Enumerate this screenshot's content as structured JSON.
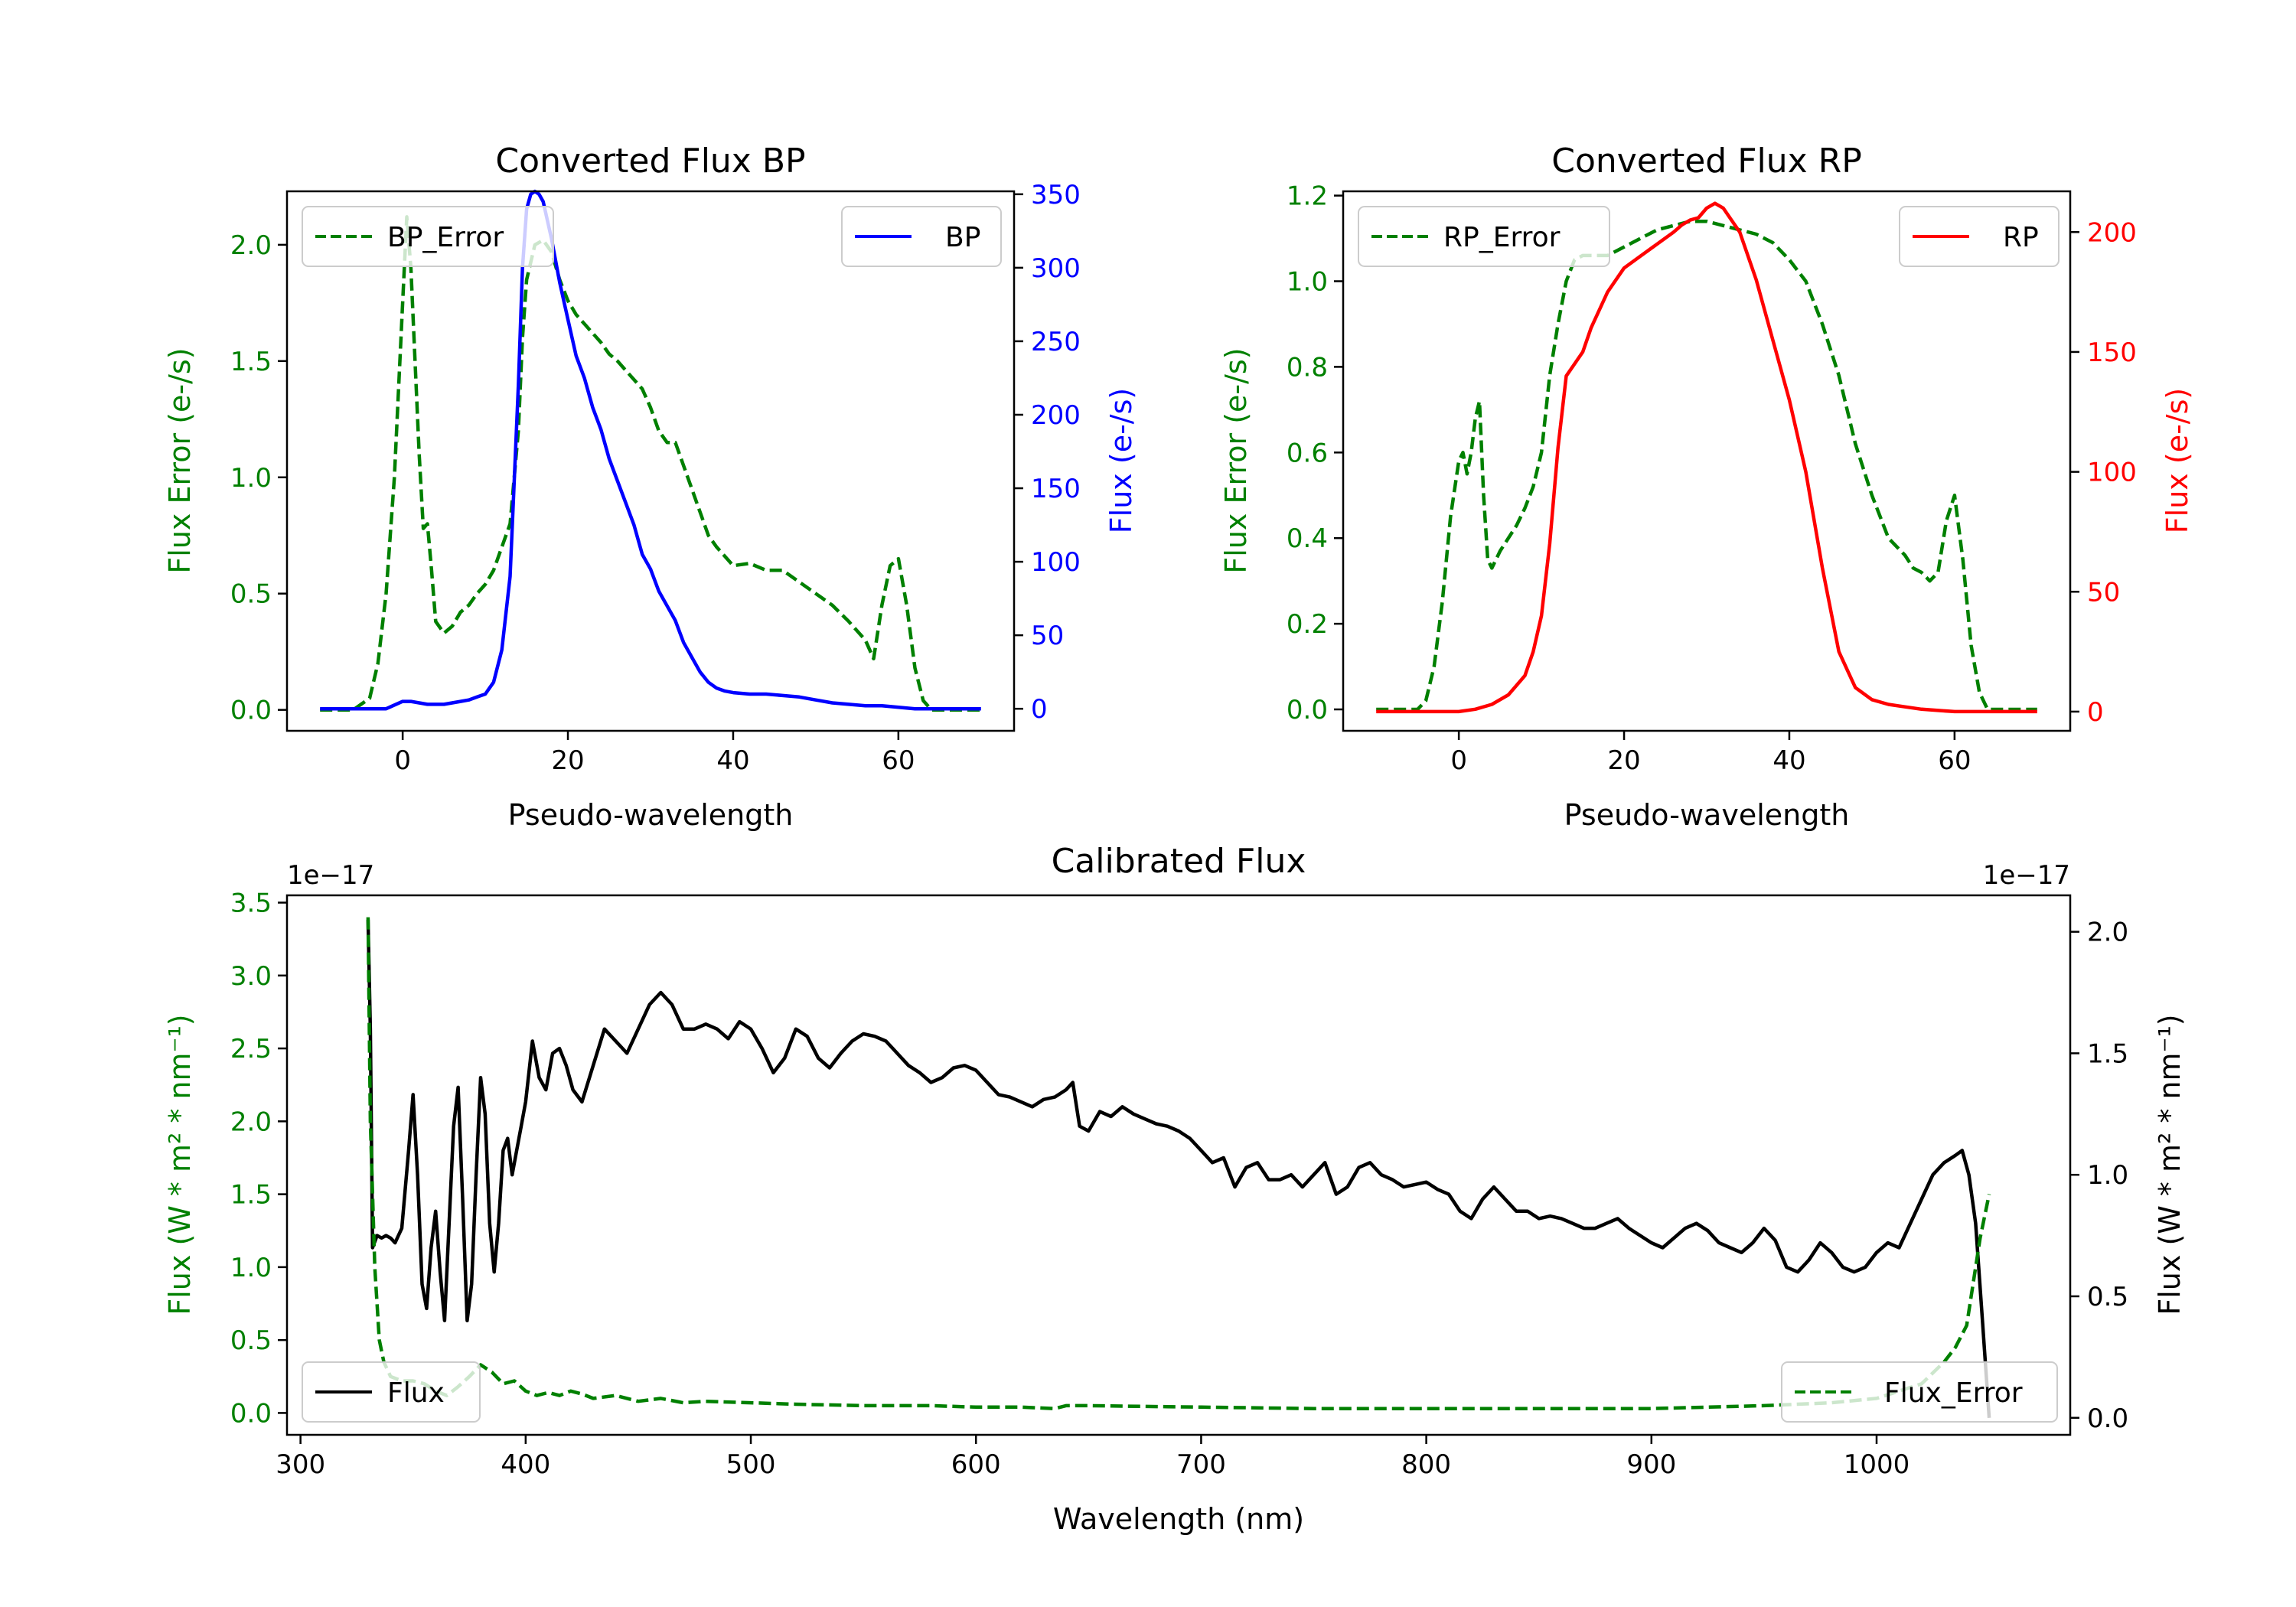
{
  "colors": {
    "green": "#008000",
    "blue": "#0000ff",
    "red": "#ff0000",
    "black": "#000000"
  },
  "chart_data": [
    {
      "id": "bp",
      "type": "line",
      "title": "Converted Flux BP",
      "xlabel": "Pseudo-wavelength",
      "ylabel_left": "Flux Error (e-/s)",
      "ylabel_right": "Flux (e-/s)",
      "xlim": [
        -14,
        74
      ],
      "ylim_left": [
        -0.09,
        2.23
      ],
      "ylim_right": [
        -15,
        352
      ],
      "xticks": [
        0,
        20,
        40,
        60
      ],
      "yticks_left": [
        "0.0",
        "0.5",
        "1.0",
        "1.5",
        "2.0"
      ],
      "yticks_right": [
        "0",
        "50",
        "100",
        "150",
        "200",
        "250",
        "300",
        "350"
      ],
      "legend_left": "BP_Error",
      "legend_right": "BP",
      "series": [
        {
          "name": "BP_Error",
          "axis": "left",
          "style": "dashed",
          "color": "green",
          "x": [
            -10,
            -6,
            -4,
            -3,
            -2,
            -1,
            0,
            0.5,
            1,
            2,
            2.5,
            3,
            3.5,
            4,
            5,
            6,
            7,
            8,
            9,
            10,
            11,
            12,
            13,
            14,
            14.5,
            15,
            16,
            17,
            18,
            19,
            20,
            21,
            22,
            23,
            24,
            25,
            26,
            27,
            28,
            29,
            30,
            31,
            32,
            33,
            34,
            35,
            36,
            37,
            38,
            40,
            42,
            44,
            46,
            48,
            50,
            52,
            54,
            56,
            57,
            58,
            59,
            60,
            61,
            62,
            63,
            64,
            66,
            68,
            70
          ],
          "y": [
            0.0,
            0.0,
            0.05,
            0.2,
            0.5,
            1.0,
            1.75,
            2.12,
            1.9,
            1.1,
            0.78,
            0.8,
            0.6,
            0.38,
            0.33,
            0.36,
            0.42,
            0.45,
            0.5,
            0.54,
            0.6,
            0.7,
            0.8,
            1.2,
            1.6,
            1.85,
            2.0,
            2.02,
            1.97,
            1.85,
            1.76,
            1.7,
            1.66,
            1.62,
            1.58,
            1.53,
            1.5,
            1.46,
            1.42,
            1.38,
            1.3,
            1.2,
            1.15,
            1.15,
            1.05,
            0.95,
            0.85,
            0.75,
            0.7,
            0.62,
            0.63,
            0.6,
            0.6,
            0.55,
            0.5,
            0.45,
            0.38,
            0.3,
            0.22,
            0.45,
            0.62,
            0.65,
            0.45,
            0.18,
            0.04,
            0.0,
            0.0,
            0.0,
            0.0
          ]
        },
        {
          "name": "BP",
          "axis": "right",
          "style": "solid",
          "color": "blue",
          "x": [
            -10,
            -5,
            -2,
            0,
            1,
            2,
            3,
            4,
            5,
            6,
            7,
            8,
            9,
            10,
            11,
            12,
            13,
            14,
            14.5,
            15,
            15.5,
            16,
            16.5,
            17,
            18,
            19,
            20,
            21,
            22,
            23,
            24,
            25,
            26,
            27,
            28,
            29,
            30,
            31,
            32,
            33,
            34,
            35,
            36,
            37,
            38,
            39,
            40,
            42,
            44,
            46,
            48,
            50,
            52,
            54,
            56,
            58,
            60,
            62,
            64,
            66,
            68,
            70
          ],
          "y": [
            0,
            0,
            0,
            5,
            5,
            4,
            3,
            3,
            3,
            4,
            5,
            6,
            8,
            10,
            18,
            40,
            90,
            220,
            300,
            340,
            350,
            352,
            350,
            345,
            320,
            290,
            265,
            240,
            225,
            205,
            190,
            170,
            155,
            140,
            125,
            105,
            95,
            80,
            70,
            60,
            45,
            35,
            25,
            18,
            14,
            12,
            11,
            10,
            10,
            9,
            8,
            6,
            4,
            3,
            2,
            2,
            1,
            0,
            0,
            0,
            0,
            0
          ]
        }
      ]
    },
    {
      "id": "rp",
      "type": "line",
      "title": "Converted Flux RP",
      "xlabel": "Pseudo-wavelength",
      "ylabel_left": "Flux Error (e-/s)",
      "ylabel_right": "Flux (e-/s)",
      "xlim": [
        -14,
        74
      ],
      "ylim_left": [
        -0.05,
        1.21
      ],
      "ylim_right": [
        -8,
        217
      ],
      "xticks": [
        0,
        20,
        40,
        60
      ],
      "yticks_left": [
        "0.0",
        "0.2",
        "0.4",
        "0.6",
        "0.8",
        "1.0",
        "1.2"
      ],
      "yticks_right": [
        "0",
        "50",
        "100",
        "150",
        "200"
      ],
      "legend_left": "RP_Error",
      "legend_right": "RP",
      "series": [
        {
          "name": "RP_Error",
          "axis": "left",
          "style": "dashed",
          "color": "green",
          "x": [
            -10,
            -5,
            -4,
            -3,
            -2,
            -1,
            0,
            0.5,
            1,
            1.5,
            2,
            2.5,
            3,
            3.5,
            4,
            5,
            6,
            7,
            8,
            9,
            10,
            11,
            12,
            13,
            14,
            15,
            16,
            17,
            18,
            20,
            22,
            24,
            26,
            28,
            30,
            32,
            34,
            36,
            38,
            40,
            42,
            44,
            46,
            48,
            50,
            52,
            54,
            55,
            56,
            57,
            58,
            59,
            60,
            61,
            62,
            63,
            64,
            66,
            68,
            70
          ],
          "y": [
            0.0,
            0.0,
            0.02,
            0.1,
            0.25,
            0.45,
            0.58,
            0.6,
            0.55,
            0.6,
            0.68,
            0.72,
            0.5,
            0.35,
            0.33,
            0.37,
            0.4,
            0.43,
            0.47,
            0.52,
            0.6,
            0.78,
            0.9,
            1.0,
            1.05,
            1.06,
            1.06,
            1.06,
            1.06,
            1.08,
            1.1,
            1.12,
            1.13,
            1.14,
            1.14,
            1.13,
            1.12,
            1.11,
            1.09,
            1.05,
            1.0,
            0.9,
            0.78,
            0.62,
            0.5,
            0.4,
            0.36,
            0.33,
            0.32,
            0.3,
            0.32,
            0.44,
            0.5,
            0.35,
            0.15,
            0.04,
            0.0,
            0.0,
            0.0,
            0.0
          ]
        },
        {
          "name": "RP",
          "axis": "right",
          "style": "solid",
          "color": "red",
          "x": [
            -10,
            -5,
            0,
            2,
            4,
            6,
            8,
            9,
            10,
            11,
            12,
            13,
            14,
            15,
            16,
            18,
            20,
            22,
            24,
            26,
            27,
            28,
            29,
            30,
            31,
            32,
            33,
            34,
            35,
            36,
            38,
            40,
            42,
            44,
            46,
            48,
            50,
            52,
            54,
            56,
            58,
            60,
            62,
            64,
            66,
            68,
            70
          ],
          "y": [
            0,
            0,
            0,
            1,
            3,
            7,
            15,
            25,
            40,
            70,
            110,
            140,
            145,
            150,
            160,
            175,
            185,
            190,
            195,
            200,
            203,
            205,
            206,
            210,
            212,
            210,
            205,
            200,
            190,
            180,
            155,
            130,
            100,
            60,
            25,
            10,
            5,
            3,
            2,
            1,
            0.5,
            0,
            0,
            0,
            0,
            0,
            0
          ]
        }
      ]
    },
    {
      "id": "cal",
      "type": "line",
      "title": "Calibrated Flux",
      "xlabel": "Wavelength (nm)",
      "ylabel_left": "Flux (W * m² * nm⁻¹)",
      "ylabel_right": "Flux (W * m² * nm⁻¹)",
      "xlim": [
        294,
        1086
      ],
      "ylim_left": [
        -0.15,
        3.55
      ],
      "ylim_right": [
        -0.07,
        2.15
      ],
      "offset_left": "1e−17",
      "offset_right": "1e−17",
      "xticks": [
        300,
        400,
        500,
        600,
        700,
        800,
        900,
        1000
      ],
      "yticks_left": [
        "0.0",
        "0.5",
        "1.0",
        "1.5",
        "2.0",
        "2.5",
        "3.0",
        "3.5"
      ],
      "yticks_right": [
        "0.0",
        "0.5",
        "1.0",
        "1.5",
        "2.0"
      ],
      "legend_left": "Flux",
      "legend_right": "Flux_Error",
      "series": [
        {
          "name": "Flux",
          "axis": "right",
          "style": "solid",
          "color": "black",
          "x": [
            330,
            331,
            332,
            334,
            336,
            338,
            340,
            342,
            345,
            348,
            350,
            352,
            354,
            356,
            358,
            360,
            362,
            364,
            366,
            368,
            370,
            372,
            374,
            376,
            378,
            380,
            382,
            384,
            386,
            388,
            390,
            392,
            394,
            396,
            398,
            400,
            403,
            406,
            409,
            412,
            415,
            418,
            421,
            425,
            430,
            435,
            440,
            445,
            450,
            455,
            460,
            465,
            470,
            475,
            480,
            485,
            490,
            495,
            500,
            505,
            510,
            515,
            520,
            525,
            530,
            535,
            540,
            545,
            550,
            555,
            560,
            565,
            570,
            575,
            580,
            585,
            590,
            595,
            600,
            605,
            610,
            615,
            620,
            625,
            630,
            635,
            640,
            643,
            646,
            650,
            655,
            660,
            665,
            670,
            675,
            680,
            685,
            690,
            695,
            700,
            705,
            710,
            715,
            720,
            725,
            730,
            735,
            740,
            745,
            750,
            755,
            760,
            765,
            770,
            775,
            780,
            785,
            790,
            795,
            800,
            805,
            810,
            815,
            820,
            825,
            830,
            835,
            840,
            845,
            850,
            855,
            860,
            865,
            870,
            875,
            880,
            885,
            890,
            895,
            900,
            905,
            910,
            915,
            920,
            925,
            930,
            935,
            940,
            945,
            950,
            955,
            960,
            965,
            970,
            975,
            980,
            985,
            990,
            995,
            1000,
            1005,
            1010,
            1015,
            1020,
            1025,
            1030,
            1035,
            1038,
            1041,
            1044,
            1047,
            1050
          ],
          "y": [
            2.05,
            1.6,
            0.7,
            0.75,
            0.74,
            0.75,
            0.74,
            0.72,
            0.78,
            1.1,
            1.33,
            1.0,
            0.55,
            0.45,
            0.7,
            0.85,
            0.6,
            0.4,
            0.8,
            1.2,
            1.36,
            0.9,
            0.4,
            0.55,
            1.0,
            1.4,
            1.25,
            0.8,
            0.6,
            0.8,
            1.1,
            1.15,
            1.0,
            1.1,
            1.2,
            1.3,
            1.55,
            1.4,
            1.35,
            1.5,
            1.52,
            1.45,
            1.35,
            1.3,
            1.45,
            1.6,
            1.55,
            1.5,
            1.6,
            1.7,
            1.75,
            1.7,
            1.6,
            1.6,
            1.62,
            1.6,
            1.56,
            1.63,
            1.6,
            1.52,
            1.42,
            1.48,
            1.6,
            1.57,
            1.48,
            1.44,
            1.5,
            1.55,
            1.58,
            1.57,
            1.55,
            1.5,
            1.45,
            1.42,
            1.38,
            1.4,
            1.44,
            1.45,
            1.43,
            1.38,
            1.33,
            1.32,
            1.3,
            1.28,
            1.31,
            1.32,
            1.35,
            1.38,
            1.2,
            1.18,
            1.26,
            1.24,
            1.28,
            1.25,
            1.23,
            1.21,
            1.2,
            1.18,
            1.15,
            1.1,
            1.05,
            1.07,
            0.95,
            1.03,
            1.05,
            0.98,
            0.98,
            1.0,
            0.95,
            1.0,
            1.05,
            0.92,
            0.95,
            1.03,
            1.05,
            1.0,
            0.98,
            0.95,
            0.96,
            0.97,
            0.94,
            0.92,
            0.85,
            0.82,
            0.9,
            0.95,
            0.9,
            0.85,
            0.85,
            0.82,
            0.83,
            0.82,
            0.8,
            0.78,
            0.78,
            0.8,
            0.82,
            0.78,
            0.75,
            0.72,
            0.7,
            0.74,
            0.78,
            0.8,
            0.77,
            0.72,
            0.7,
            0.68,
            0.72,
            0.78,
            0.73,
            0.62,
            0.6,
            0.65,
            0.72,
            0.68,
            0.62,
            0.6,
            0.62,
            0.68,
            0.72,
            0.7,
            0.8,
            0.9,
            1.0,
            1.05,
            1.08,
            1.1,
            1.0,
            0.8,
            0.4,
            0.0
          ]
        },
        {
          "name": "Flux_Error",
          "axis": "left",
          "style": "dashed",
          "color": "green",
          "x": [
            330,
            331,
            333,
            335,
            337,
            340,
            345,
            350,
            355,
            360,
            365,
            370,
            375,
            380,
            385,
            390,
            395,
            400,
            405,
            410,
            415,
            420,
            425,
            430,
            440,
            450,
            460,
            470,
            480,
            500,
            520,
            550,
            580,
            600,
            620,
            635,
            640,
            650,
            700,
            750,
            800,
            850,
            900,
            950,
            980,
            1000,
            1010,
            1020,
            1030,
            1035,
            1040,
            1043,
            1046,
            1050
          ],
          "y": [
            3.4,
            2.0,
            1.0,
            0.5,
            0.35,
            0.25,
            0.22,
            0.22,
            0.2,
            0.15,
            0.12,
            0.18,
            0.25,
            0.33,
            0.28,
            0.2,
            0.22,
            0.15,
            0.12,
            0.14,
            0.12,
            0.15,
            0.13,
            0.1,
            0.12,
            0.08,
            0.1,
            0.07,
            0.08,
            0.07,
            0.06,
            0.05,
            0.05,
            0.04,
            0.04,
            0.03,
            0.05,
            0.05,
            0.04,
            0.03,
            0.03,
            0.03,
            0.03,
            0.05,
            0.07,
            0.1,
            0.15,
            0.2,
            0.35,
            0.45,
            0.6,
            0.9,
            1.2,
            1.5
          ]
        }
      ]
    }
  ]
}
